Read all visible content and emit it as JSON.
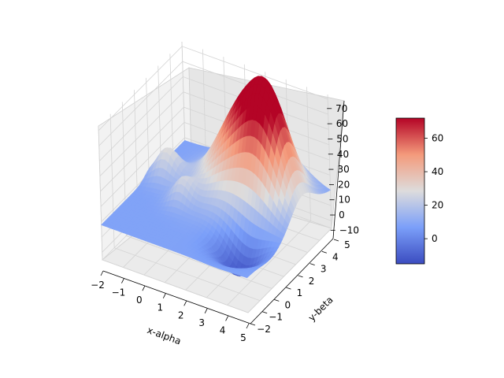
{
  "chart_data": {
    "type": "surface3d",
    "colormap": "coolwarm",
    "xlabel": "x-alpha",
    "ylabel": "y-beta",
    "zlabel": "",
    "xlim": [
      -2,
      5
    ],
    "ylim": [
      -2,
      5
    ],
    "zlim": [
      -15,
      73
    ],
    "x_ticks": [
      -2,
      -1,
      0,
      1,
      2,
      3,
      4,
      5
    ],
    "y_ticks": [
      -2,
      -1,
      0,
      1,
      2,
      3,
      4,
      5
    ],
    "z_ticks": [
      -10,
      0,
      10,
      20,
      30,
      40,
      50,
      60,
      70
    ],
    "grid": true,
    "colorbar": {
      "range": [
        -15,
        72
      ],
      "ticks": [
        0,
        20,
        40,
        60
      ],
      "placement": "right"
    },
    "surface_peaks": [
      {
        "x": 2.2,
        "y": 3.2,
        "z": 70
      },
      {
        "x": 3.6,
        "y": 2.6,
        "z": 55
      },
      {
        "x": -1.2,
        "y": 2.2,
        "z": 28
      },
      {
        "x": 0.2,
        "y": 1.0,
        "z": 22
      }
    ],
    "surface_minimum": {
      "x": 3.5,
      "y": 0.0,
      "z": -14
    }
  },
  "tick_text": {
    "x": [
      "−2",
      "−1",
      "0",
      "1",
      "2",
      "3",
      "4",
      "5"
    ],
    "y": [
      "−2",
      "−1",
      "0",
      "1",
      "2",
      "3",
      "4",
      "5"
    ],
    "z": [
      "−10",
      "0",
      "10",
      "20",
      "30",
      "40",
      "50",
      "60",
      "70"
    ],
    "colorbar": [
      "0",
      "20",
      "40",
      "60"
    ]
  }
}
